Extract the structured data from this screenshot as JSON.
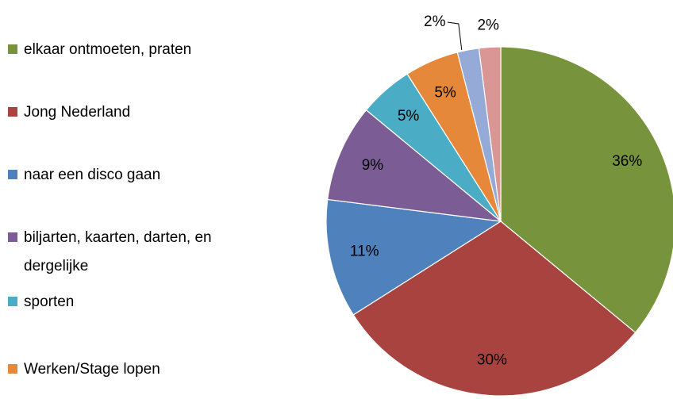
{
  "chart_data": {
    "type": "pie",
    "categories": [
      "elkaar ontmoeten, praten",
      "Jong Nederland",
      "naar een disco gaan",
      "biljarten, kaarten, darten, en dergelijke",
      "sporten",
      "Werken/Stage lopen",
      null,
      null
    ],
    "values": [
      36,
      30,
      11,
      9,
      5,
      5,
      2,
      2
    ],
    "value_labels": [
      "36%",
      "30%",
      "11%",
      "9%",
      "5%",
      "5%",
      "2%",
      "2%"
    ],
    "colors": [
      "#77933c",
      "#a8433f",
      "#4f81bd",
      "#7b5c95",
      "#4bacc6",
      "#e6883a",
      "#95aad6",
      "#d99694"
    ]
  }
}
